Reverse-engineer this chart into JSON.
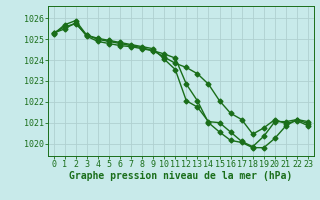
{
  "bg_color": "#c8eaea",
  "grid_color": "#b0d0d0",
  "line_color": "#1a6e1a",
  "marker": "D",
  "markersize": 2.5,
  "linewidth": 1.0,
  "xlabel": "Graphe pression niveau de la mer (hPa)",
  "xlabel_fontsize": 7,
  "tick_fontsize": 6,
  "ylim": [
    1019.4,
    1026.6
  ],
  "xlim": [
    -0.5,
    23.5
  ],
  "yticks": [
    1020,
    1021,
    1022,
    1023,
    1024,
    1025,
    1026
  ],
  "xticks": [
    0,
    1,
    2,
    3,
    4,
    5,
    6,
    7,
    8,
    9,
    10,
    11,
    12,
    13,
    14,
    15,
    16,
    17,
    18,
    19,
    20,
    21,
    22,
    23
  ],
  "series1": [
    1025.3,
    1025.6,
    1025.75,
    1025.2,
    1025.05,
    1024.95,
    1024.85,
    1024.75,
    1024.65,
    1024.55,
    1024.05,
    1023.55,
    1022.05,
    1021.75,
    1021.05,
    1021.0,
    1020.55,
    1020.1,
    1019.85,
    1020.35,
    1021.05,
    1021.05,
    1021.15,
    1021.05
  ],
  "series2": [
    1025.25,
    1025.7,
    1025.9,
    1025.2,
    1025.0,
    1024.9,
    1024.8,
    1024.7,
    1024.6,
    1024.45,
    1024.3,
    1024.1,
    1022.85,
    1022.05,
    1021.0,
    1020.55,
    1020.15,
    1020.05,
    1019.8,
    1019.8,
    1020.25,
    1020.85,
    1021.15,
    1020.95
  ],
  "series3": [
    1025.3,
    1025.5,
    1025.8,
    1025.15,
    1024.9,
    1024.8,
    1024.7,
    1024.65,
    1024.55,
    1024.45,
    1024.15,
    1023.85,
    1023.65,
    1023.35,
    1022.85,
    1022.05,
    1021.45,
    1021.15,
    1020.45,
    1020.75,
    1021.15,
    1020.95,
    1021.1,
    1020.85
  ]
}
